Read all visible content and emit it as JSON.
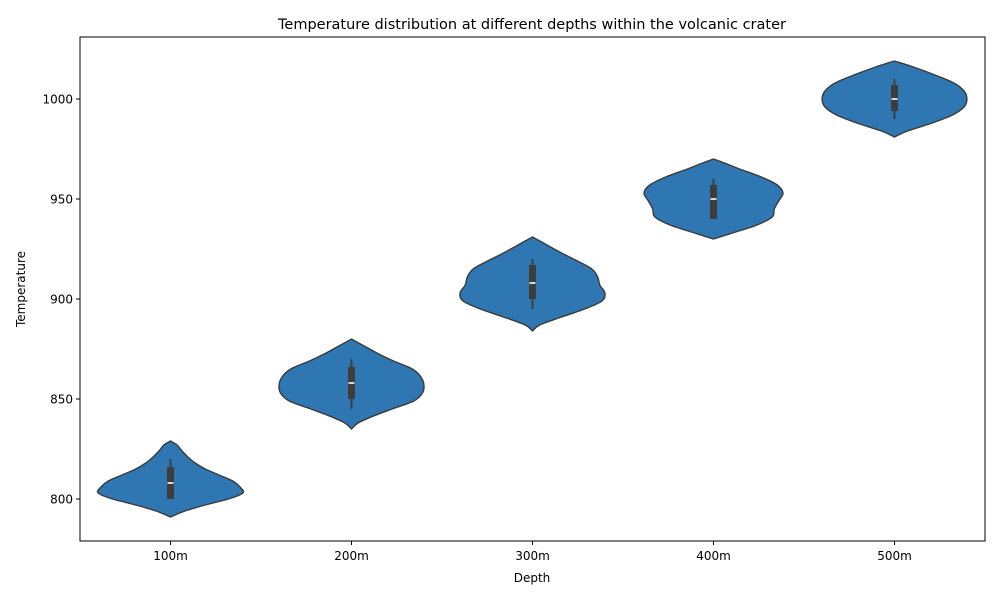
{
  "chart_data": {
    "type": "violin",
    "title": "Temperature distribution at different depths within the volcanic crater",
    "xlabel": "Depth",
    "ylabel": "Temperature",
    "categories": [
      "100m",
      "200m",
      "300m",
      "400m",
      "500m"
    ],
    "yticks": [
      800,
      850,
      900,
      950,
      1000
    ],
    "ylim": [
      779,
      1031
    ],
    "grid": false,
    "colors": {
      "violin_fill": "#2f77b3",
      "violin_edge": "#3a3a3a",
      "box": "#3d3d3d",
      "median": "#ffffff"
    },
    "series": [
      {
        "category": "100m",
        "whisker": [
          800,
          820
        ],
        "q1": 800,
        "q3": 816,
        "median": 808,
        "density": [
          [
            791,
            0.0
          ],
          [
            794,
            0.2
          ],
          [
            797,
            0.48
          ],
          [
            800,
            0.8
          ],
          [
            803,
            1.0
          ],
          [
            806,
            0.96
          ],
          [
            809,
            0.86
          ],
          [
            812,
            0.67
          ],
          [
            815,
            0.48
          ],
          [
            818,
            0.34
          ],
          [
            821,
            0.24
          ],
          [
            824,
            0.16
          ],
          [
            827,
            0.09
          ],
          [
            829,
            0.0
          ]
        ]
      },
      {
        "category": "200m",
        "whisker": [
          845,
          870
        ],
        "q1": 850,
        "q3": 866,
        "median": 858,
        "density": [
          [
            835,
            0.0
          ],
          [
            838,
            0.09
          ],
          [
            841,
            0.27
          ],
          [
            845,
            0.56
          ],
          [
            849,
            0.86
          ],
          [
            853,
            0.98
          ],
          [
            857,
            1.0
          ],
          [
            861,
            0.96
          ],
          [
            865,
            0.84
          ],
          [
            869,
            0.58
          ],
          [
            873,
            0.35
          ],
          [
            877,
            0.15
          ],
          [
            880,
            0.0
          ]
        ]
      },
      {
        "category": "300m",
        "whisker": [
          895,
          920
        ],
        "q1": 900,
        "q3": 917,
        "median": 908,
        "density": [
          [
            884,
            0.0
          ],
          [
            887,
            0.1
          ],
          [
            891,
            0.4
          ],
          [
            895,
            0.72
          ],
          [
            899,
            0.96
          ],
          [
            903,
            1.0
          ],
          [
            907,
            0.93
          ],
          [
            911,
            0.9
          ],
          [
            915,
            0.82
          ],
          [
            919,
            0.62
          ],
          [
            923,
            0.4
          ],
          [
            927,
            0.2
          ],
          [
            931,
            0.0
          ]
        ]
      },
      {
        "category": "400m",
        "whisker": [
          940,
          960
        ],
        "q1": 940,
        "q3": 957,
        "median": 950,
        "density": [
          [
            930,
            0.0
          ],
          [
            933,
            0.26
          ],
          [
            937,
            0.6
          ],
          [
            941,
            0.81
          ],
          [
            945,
            0.84
          ],
          [
            949,
            0.9
          ],
          [
            953,
            0.96
          ],
          [
            957,
            0.88
          ],
          [
            961,
            0.66
          ],
          [
            965,
            0.36
          ],
          [
            968,
            0.15
          ],
          [
            970,
            0.0
          ]
        ]
      },
      {
        "category": "500m",
        "whisker": [
          990,
          1010
        ],
        "q1": 994,
        "q3": 1007,
        "median": 1000,
        "density": [
          [
            981,
            0.0
          ],
          [
            984,
            0.18
          ],
          [
            988,
            0.52
          ],
          [
            992,
            0.8
          ],
          [
            996,
            0.96
          ],
          [
            1000,
            1.0
          ],
          [
            1004,
            0.96
          ],
          [
            1008,
            0.82
          ],
          [
            1012,
            0.56
          ],
          [
            1016,
            0.26
          ],
          [
            1019,
            0.0
          ]
        ]
      }
    ]
  }
}
